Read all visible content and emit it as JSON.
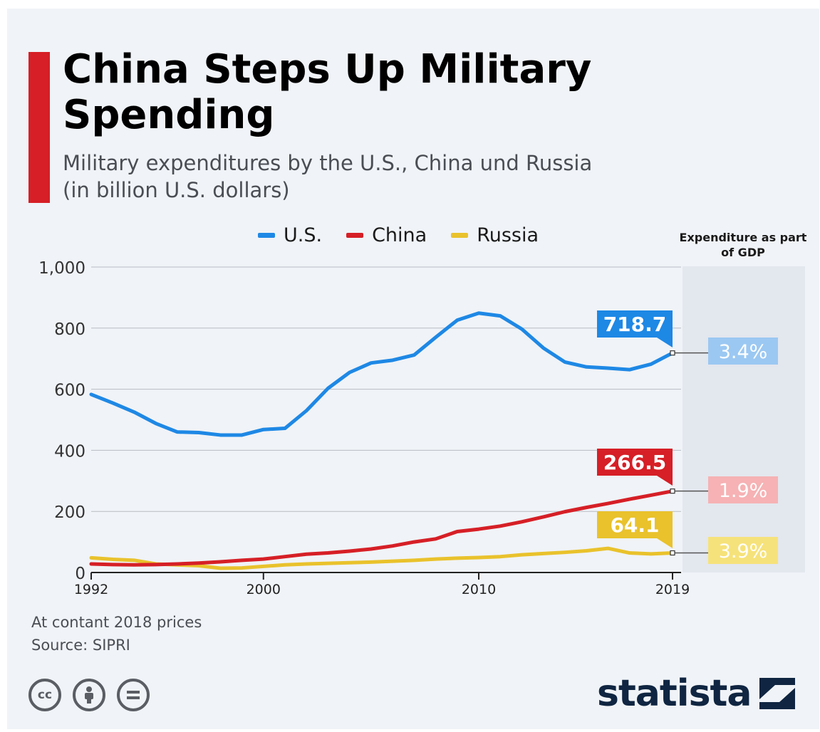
{
  "title": "China Steps Up Military Spending",
  "subtitle": "Military expenditures by the U.S., China und Russia (in billion U.S. dollars)",
  "gdp_header": "Expenditure as part of GDP",
  "footnote": {
    "line1": "At contant 2018 prices",
    "line2": "Source: SIPRI"
  },
  "brand": {
    "name": "statista"
  },
  "cc_icons": [
    "cc-icon",
    "by-icon",
    "nd-icon"
  ],
  "chart_data": {
    "type": "line",
    "x": [
      1992,
      1993,
      1994,
      1995,
      1996,
      1997,
      1998,
      1999,
      2000,
      2001,
      2002,
      2003,
      2004,
      2005,
      2006,
      2007,
      2008,
      2009,
      2010,
      2011,
      2012,
      2013,
      2014,
      2015,
      2016,
      2017,
      2018,
      2019
    ],
    "x_ticks": [
      "1992",
      "2000",
      "2010",
      "2019"
    ],
    "y_ticks": [
      "0",
      "200",
      "400",
      "600",
      "800",
      "1,000"
    ],
    "ylim": [
      0,
      1000
    ],
    "grid": true,
    "legend_position": "top",
    "series": [
      {
        "name": "U.S.",
        "color": "#1e88e5",
        "values": [
          583,
          555,
          525,
          488,
          460,
          458,
          450,
          450,
          468,
          472,
          530,
          603,
          655,
          686,
          695,
          712,
          770,
          826,
          849,
          840,
          797,
          735,
          689,
          673,
          669,
          664,
          682,
          718.7
        ],
        "end_label": "718.7",
        "gdp_share": "3.4%",
        "gdp_color": "#9bc8f2"
      },
      {
        "name": "China",
        "color": "#d61f26",
        "values": [
          28,
          26,
          25,
          26,
          28,
          31,
          35,
          40,
          44,
          52,
          60,
          64,
          70,
          77,
          87,
          100,
          110,
          134,
          142,
          152,
          166,
          182,
          199,
          213,
          226,
          240,
          253,
          266.5
        ],
        "end_label": "266.5",
        "gdp_share": "1.9%",
        "gdp_color": "#f6b2b4"
      },
      {
        "name": "Russia",
        "color": "#e9c22c",
        "values": [
          48,
          43,
          40,
          28,
          25,
          22,
          14,
          15,
          20,
          25,
          28,
          30,
          32,
          34,
          37,
          40,
          44,
          47,
          49,
          52,
          58,
          62,
          66,
          71,
          79,
          64,
          61,
          64.1
        ],
        "end_label": "64.1",
        "gdp_share": "3.9%",
        "gdp_color": "#f6e27a"
      }
    ]
  }
}
